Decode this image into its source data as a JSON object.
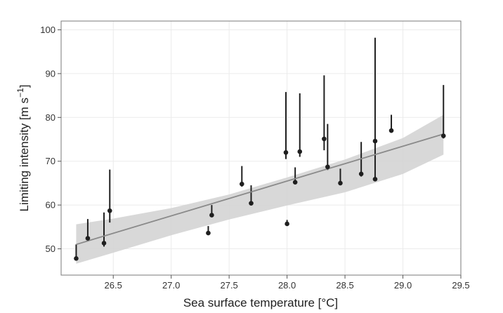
{
  "chart_data": {
    "type": "scatter",
    "xlabel": "Sea surface temperature [°C]",
    "ylabel_main": "Limiting intensity [m s",
    "ylabel_sup": "−1",
    "ylabel_end": "]",
    "xlim": [
      26.05,
      29.5
    ],
    "ylim": [
      44,
      102
    ],
    "xticks": [
      26.5,
      27.0,
      27.5,
      28.0,
      28.5,
      29.0,
      29.5
    ],
    "xtick_labels": [
      "26.5",
      "27.0",
      "27.5",
      "28.0",
      "28.5",
      "29.0",
      "29.5"
    ],
    "yticks": [
      50,
      60,
      70,
      80,
      90,
      100
    ],
    "ytick_labels": [
      "50",
      "60",
      "70",
      "80",
      "90",
      "100"
    ],
    "grid": true,
    "points": [
      {
        "x": 26.18,
        "y": 47.8,
        "hi": 51.0,
        "lo": 47.8
      },
      {
        "x": 26.28,
        "y": 52.4,
        "hi": 56.8,
        "lo": 52.0
      },
      {
        "x": 26.42,
        "y": 51.3,
        "hi": 58.3,
        "lo": 50.5
      },
      {
        "x": 26.47,
        "y": 58.7,
        "hi": 68.1,
        "lo": 56.0
      },
      {
        "x": 27.32,
        "y": 53.6,
        "hi": 55.2,
        "lo": 53.6
      },
      {
        "x": 27.35,
        "y": 57.7,
        "hi": 60.0,
        "lo": 57.2
      },
      {
        "x": 27.61,
        "y": 64.8,
        "hi": 68.9,
        "lo": 64.2
      },
      {
        "x": 27.69,
        "y": 60.4,
        "hi": 64.5,
        "lo": 60.0
      },
      {
        "x": 27.99,
        "y": 72.0,
        "hi": 85.8,
        "lo": 70.5
      },
      {
        "x": 28.0,
        "y": 55.7,
        "hi": 56.6,
        "lo": 55.7
      },
      {
        "x": 28.07,
        "y": 65.2,
        "hi": 68.6,
        "lo": 64.8
      },
      {
        "x": 28.11,
        "y": 72.2,
        "hi": 85.5,
        "lo": 71.0
      },
      {
        "x": 28.32,
        "y": 75.1,
        "hi": 89.6,
        "lo": 72.5
      },
      {
        "x": 28.35,
        "y": 68.7,
        "hi": 78.5,
        "lo": 68.0
      },
      {
        "x": 28.46,
        "y": 65.0,
        "hi": 68.3,
        "lo": 64.5
      },
      {
        "x": 28.64,
        "y": 67.1,
        "hi": 74.4,
        "lo": 66.5
      },
      {
        "x": 28.76,
        "y": 74.6,
        "hi": 98.2,
        "lo": 66.0
      },
      {
        "x": 28.76,
        "y": 65.9,
        "hi": 66.5,
        "lo": 65.9
      },
      {
        "x": 28.9,
        "y": 77.0,
        "hi": 80.6,
        "lo": 76.5
      },
      {
        "x": 29.35,
        "y": 75.8,
        "hi": 87.4,
        "lo": 75.2
      }
    ],
    "fit": {
      "x": [
        26.18,
        29.35
      ],
      "y": [
        51.0,
        76.2
      ]
    },
    "ci_band": {
      "x": [
        26.18,
        26.5,
        27.0,
        27.5,
        28.0,
        28.5,
        29.0,
        29.35
      ],
      "upper": [
        55.6,
        56.9,
        59.3,
        62.4,
        66.3,
        70.4,
        75.3,
        80.6
      ],
      "lower": [
        46.6,
        49.1,
        53.1,
        56.7,
        59.9,
        62.9,
        67.1,
        71.5
      ]
    },
    "colors": {
      "point": "#1f1f1f",
      "fit_line": "#8a8a8a",
      "band": "#d4d4d4",
      "grid": "#ebebeb",
      "panel_border": "#7a7a7a"
    }
  }
}
